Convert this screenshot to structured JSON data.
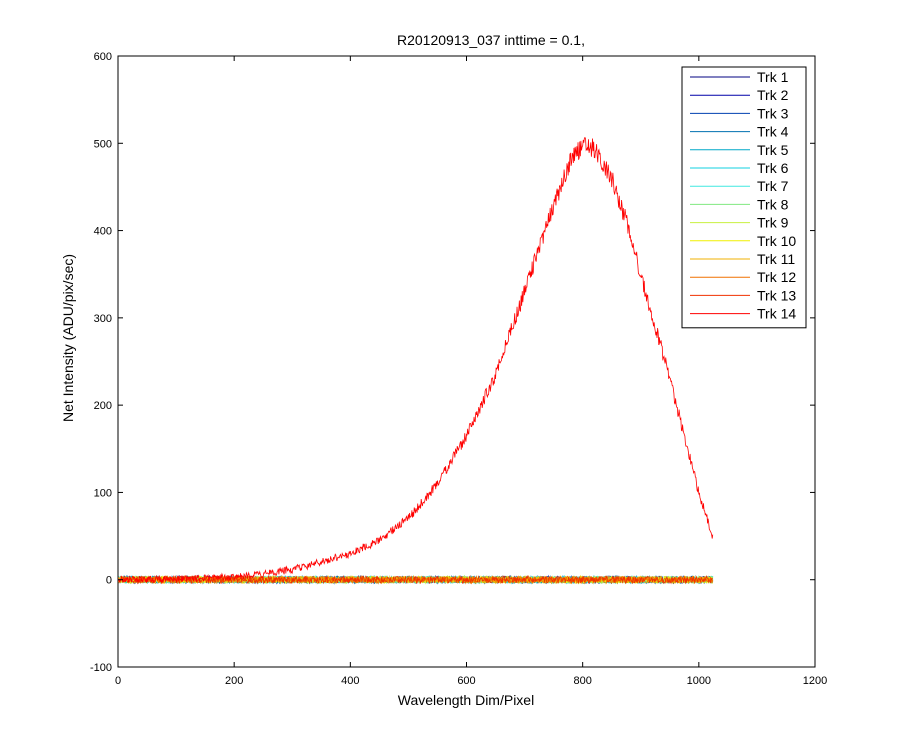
{
  "chart_data": {
    "type": "line",
    "title": "R20120913_037 inttime = 0.1,",
    "xlabel": "Wavelength Dim/Pixel",
    "ylabel": "Net Intensity (ADU/pix/sec)",
    "xlim": [
      0,
      1200
    ],
    "ylim": [
      -100,
      600
    ],
    "xticks": [
      0,
      200,
      400,
      600,
      800,
      1000,
      1200
    ],
    "yticks": [
      -100,
      0,
      100,
      200,
      300,
      400,
      500,
      600
    ],
    "grid": false,
    "legend_position": "top-right",
    "x_range": [
      1,
      1024
    ],
    "series": [
      {
        "name": "Trk 1",
        "color": "#000080",
        "shape": "noise",
        "mean": 0,
        "noise": 4
      },
      {
        "name": "Trk 2",
        "color": "#0000a8",
        "shape": "noise",
        "mean": 0,
        "noise": 4
      },
      {
        "name": "Trk 3",
        "color": "#0040b0",
        "shape": "noise",
        "mean": 0,
        "noise": 4
      },
      {
        "name": "Trk 4",
        "color": "#0070b0",
        "shape": "noise",
        "mean": 0,
        "noise": 4
      },
      {
        "name": "Trk 5",
        "color": "#00a8c8",
        "shape": "noise",
        "mean": 0,
        "noise": 4
      },
      {
        "name": "Trk 6",
        "color": "#10d0e0",
        "shape": "noise",
        "mean": 0,
        "noise": 4
      },
      {
        "name": "Trk 7",
        "color": "#40e8e0",
        "shape": "noise",
        "mean": 0,
        "noise": 4
      },
      {
        "name": "Trk 8",
        "color": "#80e880",
        "shape": "noise",
        "mean": 0,
        "noise": 4
      },
      {
        "name": "Trk 9",
        "color": "#c8f040",
        "shape": "noise",
        "mean": 0,
        "noise": 4
      },
      {
        "name": "Trk 10",
        "color": "#f0f000",
        "shape": "noise",
        "mean": 0,
        "noise": 4
      },
      {
        "name": "Trk 11",
        "color": "#f0b000",
        "shape": "noise",
        "mean": 0,
        "noise": 4
      },
      {
        "name": "Trk 12",
        "color": "#f07000",
        "shape": "noise",
        "mean": 0,
        "noise": 4
      },
      {
        "name": "Trk 13",
        "color": "#f03000",
        "shape": "noise",
        "mean": 0,
        "noise": 4
      },
      {
        "name": "Trk 14",
        "color": "#ff0000",
        "shape": "curve",
        "noise": 4,
        "x": [
          1,
          100,
          200,
          250,
          300,
          350,
          400,
          450,
          500,
          550,
          600,
          650,
          700,
          750,
          780,
          800,
          820,
          850,
          880,
          900,
          950,
          1000,
          1024
        ],
        "y": [
          0,
          1,
          3,
          6,
          12,
          20,
          30,
          45,
          70,
          110,
          165,
          235,
          330,
          430,
          480,
          500,
          495,
          460,
          400,
          350,
          230,
          100,
          48
        ]
      }
    ]
  }
}
